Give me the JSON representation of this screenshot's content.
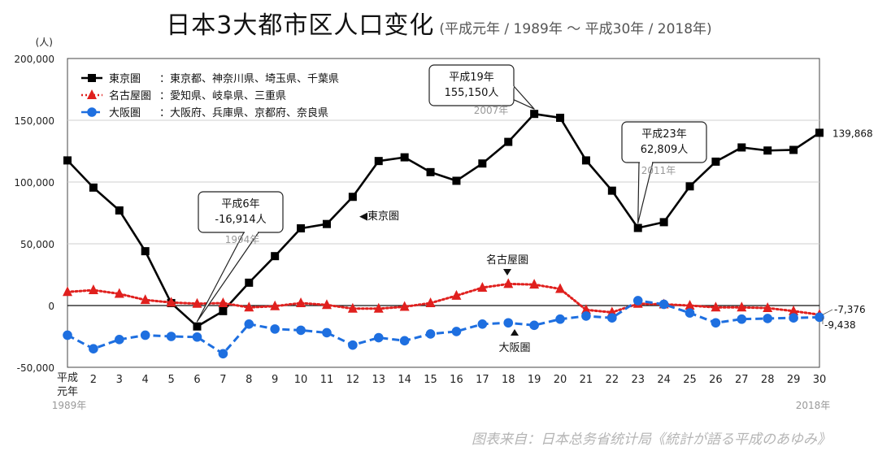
{
  "title": {
    "main": "日本3大都市区人口变化",
    "sub": "(平成元年 / 1989年 ～ 平成30年 / 2018年)"
  },
  "source": "图表来自：日本总务省统计局《統計が語る平成のあゆみ》",
  "chart_data": {
    "type": "line",
    "ylabel": "(人)",
    "ylim": [
      -50000,
      200000
    ],
    "yticks": [
      "200,000",
      "150,000",
      "100,000",
      "50,000",
      "0",
      "-50,000"
    ],
    "x": [
      "平成元年",
      "2",
      "3",
      "4",
      "5",
      "6",
      "7",
      "8",
      "9",
      "10",
      "11",
      "12",
      "13",
      "14",
      "15",
      "16",
      "17",
      "18",
      "19",
      "20",
      "21",
      "22",
      "23",
      "24",
      "25",
      "26",
      "27",
      "28",
      "29",
      "30"
    ],
    "x_first_sub": "1989年",
    "x_last_sub": "2018年",
    "series": [
      {
        "name": "東京圏",
        "region": "：東京都、神奈川県、埼玉県、千葉県",
        "color": "#000000",
        "marker": "square",
        "style": "solid",
        "values": [
          117500,
          95500,
          77000,
          44000,
          2000,
          -16914,
          -4500,
          18500,
          40000,
          62500,
          66000,
          88000,
          117000,
          120000,
          108000,
          101000,
          115000,
          132500,
          155150,
          152000,
          117500,
          93000,
          62809,
          67500,
          96500,
          116500,
          128000,
          125500,
          126000,
          139868
        ]
      },
      {
        "name": "名古屋圏",
        "region": "：愛知県、岐阜県、三重県",
        "color": "#e0201e",
        "marker": "triangle",
        "style": "dotted",
        "values": [
          11000,
          12500,
          9500,
          4500,
          2500,
          1500,
          2000,
          -1500,
          -500,
          2000,
          500,
          -2500,
          -2500,
          -1000,
          2000,
          8000,
          14500,
          17500,
          17000,
          13500,
          -3500,
          -5500,
          1500,
          1000,
          0,
          -1500,
          -1500,
          -2000,
          -4500,
          -7376
        ]
      },
      {
        "name": "大阪圏",
        "region": "：大阪府、兵庫県、京都府、奈良県",
        "color": "#1e6fe0",
        "marker": "circle",
        "style": "dashed",
        "values": [
          -24000,
          -35000,
          -27500,
          -24000,
          -25000,
          -25500,
          -39000,
          -15000,
          -19000,
          -20000,
          -22000,
          -32000,
          -26000,
          -28500,
          -23000,
          -21000,
          -15000,
          -14000,
          -16000,
          -11000,
          -8500,
          -10000,
          4000,
          1000,
          -6000,
          -14000,
          -11000,
          -10500,
          -10000,
          -9438
        ]
      }
    ],
    "annotations": [
      {
        "lines": [
          "平成6年",
          "-16,914人"
        ],
        "year": "1994年",
        "series": 0,
        "index": 5
      },
      {
        "lines": [
          "平成19年",
          "155,150人"
        ],
        "year": "2007年",
        "series": 0,
        "index": 18
      },
      {
        "lines": [
          "平成23年",
          "62,809人"
        ],
        "year": "2011年",
        "series": 0,
        "index": 22
      }
    ],
    "series_labels": [
      "◀東京圏",
      "名古屋圏",
      "大阪圏"
    ],
    "end_labels": [
      "139,868",
      "-7,376",
      "-9,438"
    ]
  }
}
